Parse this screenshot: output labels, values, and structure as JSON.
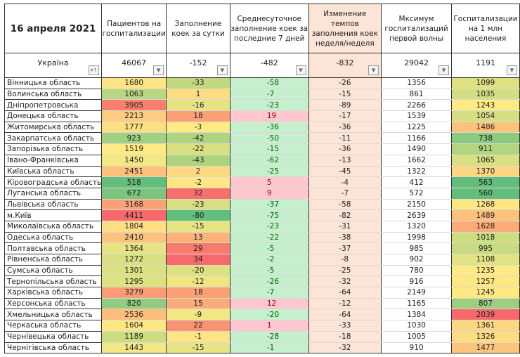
{
  "header": {
    "date": "16 апреля 2021",
    "columns": [
      "Пациентов на госпитализации",
      "Заполнение коек за сутки",
      "Среднесуточное заполнение коек за последние 7 дней",
      "Изменение темпов заполнения коек неделя/неделя",
      "Мксимум госпитализаций первой волны",
      "Госпитализации на 1 млн населения"
    ]
  },
  "total": {
    "name": "Україна",
    "values": [
      "46067",
      "-152",
      "-482",
      "-832",
      "29042",
      "1191"
    ]
  },
  "colors": {
    "scale_low": "#63be7b",
    "scale_mid": "#ffeb84",
    "scale_high": "#f8696b",
    "pos_fill": "#c6efce",
    "pos_text": "#006100",
    "neg_fill": "#ffc7ce",
    "neg_text": "#9c0006",
    "trend_fill": "#fce4d6"
  },
  "rows": [
    [
      "Вінницька область",
      "1680",
      "-33",
      "-58",
      "-26",
      "1356",
      "1099"
    ],
    [
      "Волинська область",
      "1063",
      "1",
      "-7",
      "-15",
      "861",
      "1035"
    ],
    [
      "Дніпропетровська",
      "3905",
      "-16",
      "-23",
      "-89",
      "2266",
      "1243"
    ],
    [
      "Донецька область",
      "2213",
      "18",
      "19",
      "-17",
      "1539",
      "1054"
    ],
    [
      "Житомирська область",
      "1777",
      "-3",
      "-36",
      "-36",
      "1225",
      "1486"
    ],
    [
      "Закарпатська область",
      "923",
      "-42",
      "-50",
      "-11",
      "1166",
      "738"
    ],
    [
      "Запорізька область",
      "1519",
      "-22",
      "-15",
      "-36",
      "1490",
      "911"
    ],
    [
      "Івано-Франківська",
      "1450",
      "-43",
      "-62",
      "-13",
      "1662",
      "1065"
    ],
    [
      "Київська область",
      "2451",
      "2",
      "-25",
      "-45",
      "1322",
      "1370"
    ],
    [
      "Кіровоградська область",
      "518",
      "-2",
      "5",
      "-4",
      "412",
      "563"
    ],
    [
      "Луганська область",
      "672",
      "32",
      "9",
      "-7",
      "572",
      "560"
    ],
    [
      "Львівська область",
      "3168",
      "-23",
      "-37",
      "-58",
      "2150",
      "1268"
    ],
    [
      "м.Київ",
      "4411",
      "-80",
      "-75",
      "-82",
      "2639",
      "1489"
    ],
    [
      "Миколаївська область",
      "1804",
      "-15",
      "-23",
      "-31",
      "1320",
      "1628"
    ],
    [
      "Одеська область",
      "2410",
      "13",
      "-22",
      "-38",
      "1998",
      "1018"
    ],
    [
      "Полтавська область",
      "1364",
      "29",
      "-5",
      "-37",
      "985",
      "995"
    ],
    [
      "Рівненська область",
      "1272",
      "34",
      "-2",
      "-8",
      "902",
      "1108"
    ],
    [
      "Сумська область",
      "1301",
      "-20",
      "-5",
      "-25",
      "780",
      "1235"
    ],
    [
      "Тернопільська область",
      "1295",
      "-12",
      "-26",
      "-32",
      "916",
      "1257"
    ],
    [
      "Харківська область",
      "3279",
      "18",
      "-7",
      "-64",
      "2149",
      "1245"
    ],
    [
      "Херсонська область",
      "820",
      "15",
      "12",
      "-12",
      "1165",
      "807"
    ],
    [
      "Хмельницька область",
      "2536",
      "-9",
      "-20",
      "-64",
      "1384",
      "2039"
    ],
    [
      "Черкаська область",
      "1604",
      "22",
      "1",
      "-33",
      "1030",
      "1361"
    ],
    [
      "Чернівецька область",
      "1189",
      "-1",
      "-28",
      "-18",
      "1005",
      "1326"
    ],
    [
      "Чернігівська область",
      "1443",
      "-15",
      "-1",
      "-32",
      "910",
      "1477"
    ]
  ]
}
